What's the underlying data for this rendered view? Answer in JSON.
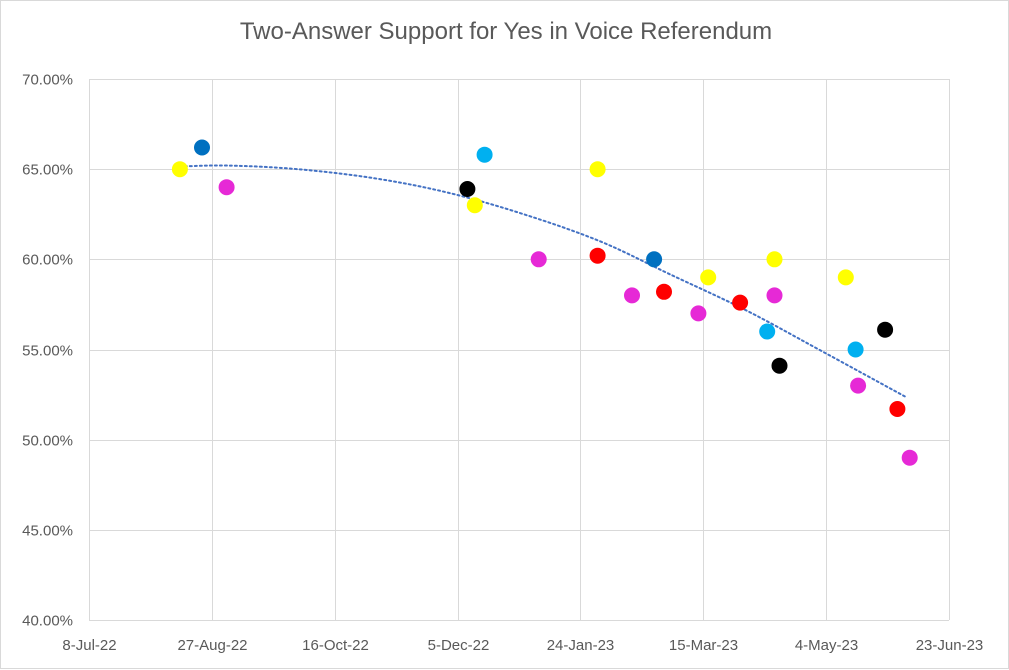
{
  "chart_data": {
    "type": "scatter",
    "title": "Two-Answer Support for Yes in Voice Referendum",
    "xlabel": "",
    "ylabel": "",
    "x_ticks": [
      {
        "date": "2022-07-08",
        "label": "8-Jul-22"
      },
      {
        "date": "2022-08-27",
        "label": "27-Aug-22"
      },
      {
        "date": "2022-10-16",
        "label": "16-Oct-22"
      },
      {
        "date": "2022-12-05",
        "label": "5-Dec-22"
      },
      {
        "date": "2023-01-24",
        "label": "24-Jan-23"
      },
      {
        "date": "2023-03-15",
        "label": "15-Mar-23"
      },
      {
        "date": "2023-05-04",
        "label": "4-May-23"
      },
      {
        "date": "2023-06-23",
        "label": "23-Jun-23"
      }
    ],
    "y_ticks": [
      {
        "value": 40,
        "label": "40.00%"
      },
      {
        "value": 45,
        "label": "45.00%"
      },
      {
        "value": 50,
        "label": "50.00%"
      },
      {
        "value": 55,
        "label": "55.00%"
      },
      {
        "value": 60,
        "label": "60.00%"
      },
      {
        "value": 65,
        "label": "65.00%"
      },
      {
        "value": 70,
        "label": "70.00%"
      }
    ],
    "xlim": [
      "2022-07-08",
      "2023-06-23"
    ],
    "ylim": [
      40,
      70
    ],
    "grid": true,
    "legend": "none",
    "colors": {
      "yellow": "#ffff00",
      "blue": "#0070c0",
      "lightblue": "#00b0f0",
      "magenta": "#e629d6",
      "black": "#000000",
      "red": "#ff0000",
      "trend": "#4472c4"
    },
    "points": [
      {
        "date": "2022-08-14",
        "value": 65.0,
        "color": "yellow"
      },
      {
        "date": "2022-08-23",
        "value": 66.2,
        "color": "blue"
      },
      {
        "date": "2022-09-02",
        "value": 64.0,
        "color": "magenta"
      },
      {
        "date": "2022-12-09",
        "value": 63.9,
        "color": "black"
      },
      {
        "date": "2022-12-12",
        "value": 63.0,
        "color": "yellow"
      },
      {
        "date": "2022-12-16",
        "value": 65.8,
        "color": "lightblue"
      },
      {
        "date": "2023-01-07",
        "value": 60.0,
        "color": "magenta"
      },
      {
        "date": "2023-01-31",
        "value": 60.2,
        "color": "red"
      },
      {
        "date": "2023-01-31",
        "value": 65.0,
        "color": "yellow"
      },
      {
        "date": "2023-02-14",
        "value": 58.0,
        "color": "magenta"
      },
      {
        "date": "2023-02-23",
        "value": 60.0,
        "color": "blue"
      },
      {
        "date": "2023-02-27",
        "value": 58.2,
        "color": "red"
      },
      {
        "date": "2023-03-13",
        "value": 57.0,
        "color": "magenta"
      },
      {
        "date": "2023-03-17",
        "value": 59.0,
        "color": "yellow"
      },
      {
        "date": "2023-03-30",
        "value": 57.6,
        "color": "red"
      },
      {
        "date": "2023-04-10",
        "value": 56.0,
        "color": "lightblue"
      },
      {
        "date": "2023-04-13",
        "value": 60.0,
        "color": "yellow"
      },
      {
        "date": "2023-04-13",
        "value": 58.0,
        "color": "magenta"
      },
      {
        "date": "2023-04-15",
        "value": 54.1,
        "color": "black"
      },
      {
        "date": "2023-05-12",
        "value": 59.0,
        "color": "yellow"
      },
      {
        "date": "2023-05-16",
        "value": 55.0,
        "color": "lightblue"
      },
      {
        "date": "2023-05-17",
        "value": 53.0,
        "color": "magenta"
      },
      {
        "date": "2023-05-28",
        "value": 56.1,
        "color": "black"
      },
      {
        "date": "2023-06-02",
        "value": 51.7,
        "color": "red"
      },
      {
        "date": "2023-06-07",
        "value": 49.0,
        "color": "magenta"
      }
    ],
    "trendline": {
      "type": "polynomial",
      "style": "dotted",
      "color": "trend",
      "points": [
        {
          "date": "2022-08-14",
          "value": 65.15
        },
        {
          "date": "2022-09-03",
          "value": 65.2
        },
        {
          "date": "2022-10-01",
          "value": 65.0
        },
        {
          "date": "2022-11-01",
          "value": 64.5
        },
        {
          "date": "2022-12-01",
          "value": 63.7
        },
        {
          "date": "2023-01-01",
          "value": 62.5
        },
        {
          "date": "2023-02-01",
          "value": 61.0
        },
        {
          "date": "2023-03-01",
          "value": 59.2
        },
        {
          "date": "2023-04-01",
          "value": 57.2
        },
        {
          "date": "2023-05-01",
          "value": 55.0
        },
        {
          "date": "2023-06-05",
          "value": 52.4
        }
      ]
    }
  }
}
